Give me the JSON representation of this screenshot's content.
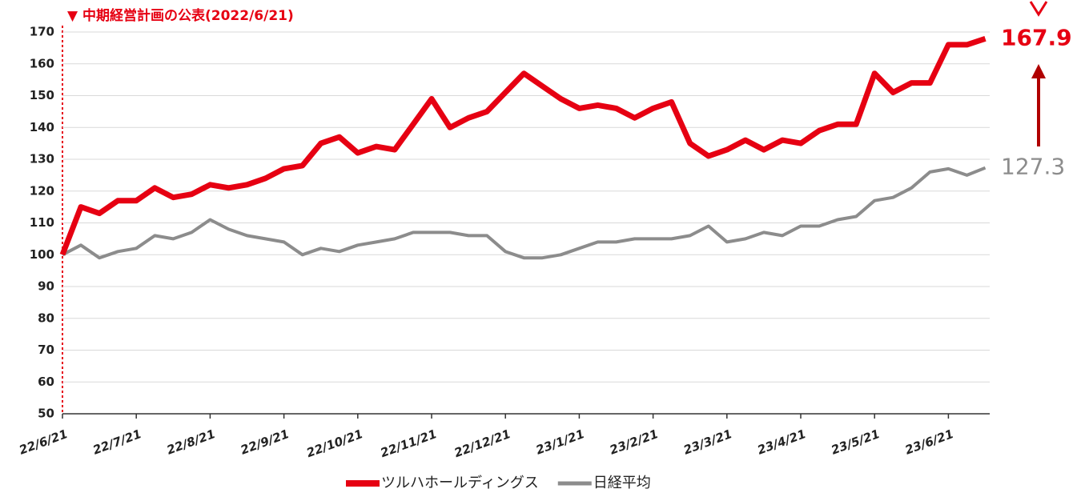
{
  "chart_data": {
    "type": "line",
    "annotation": "▼ 中期経営計画の公表(2022/6/21)",
    "categories": [
      "22/6/21",
      null,
      null,
      null,
      "22/7/21",
      null,
      null,
      null,
      "22/8/21",
      null,
      null,
      null,
      "22/9/21",
      null,
      null,
      null,
      "22/10/21",
      null,
      null,
      null,
      "22/11/21",
      null,
      null,
      null,
      "22/12/21",
      null,
      null,
      null,
      "23/1/21",
      null,
      null,
      null,
      "23/2/21",
      null,
      null,
      null,
      "23/3/21",
      null,
      null,
      null,
      "23/4/21",
      null,
      null,
      null,
      "23/5/21",
      null,
      null,
      null,
      "23/6/21",
      null,
      null
    ],
    "series": [
      {
        "name": "ツルハホールディングス",
        "color": "#e60012",
        "values": [
          100,
          115,
          113,
          117,
          117,
          121,
          118,
          119,
          122,
          121,
          122,
          124,
          127,
          128,
          135,
          137,
          132,
          134,
          133,
          141,
          149,
          140,
          143,
          145,
          151,
          157,
          153,
          149,
          146,
          147,
          146,
          143,
          146,
          148,
          135,
          131,
          133,
          136,
          133,
          136,
          135,
          139,
          141,
          141,
          157,
          151,
          154,
          154,
          166,
          166,
          167.9
        ]
      },
      {
        "name": "日経平均",
        "color": "#8c8c8c",
        "values": [
          100,
          103,
          99,
          101,
          102,
          106,
          105,
          107,
          111,
          108,
          106,
          105,
          104,
          100,
          102,
          101,
          103,
          104,
          105,
          107,
          107,
          107,
          106,
          106,
          101,
          99,
          99,
          100,
          102,
          104,
          104,
          105,
          105,
          105,
          106,
          109,
          104,
          105,
          107,
          106,
          109,
          109,
          111,
          112,
          117,
          118,
          121,
          126,
          127,
          125,
          127.3
        ]
      }
    ],
    "ylim": [
      50,
      170
    ],
    "yticks": [
      50,
      60,
      70,
      80,
      90,
      100,
      110,
      120,
      130,
      140,
      150,
      160,
      170
    ],
    "grid": true
  }
}
